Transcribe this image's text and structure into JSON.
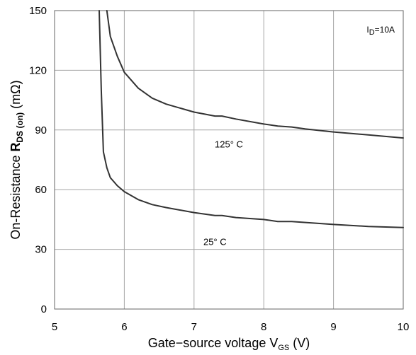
{
  "chart_data": {
    "type": "line",
    "title": "",
    "xlabel": "Gate−source voltage V",
    "xlabel_subscript": "GS",
    "xlabel_suffix": " (V)",
    "ylabel": "On-Resistance ",
    "ylabel_bold": "R",
    "ylabel_subscript": "DS (on)",
    "ylabel_suffix": " (mΩ)",
    "xlim": [
      5,
      10
    ],
    "ylim": [
      0,
      150
    ],
    "x_ticks": [
      "5",
      "6",
      "7",
      "8",
      "9",
      "10"
    ],
    "y_ticks": [
      "0",
      "30",
      "60",
      "90",
      "120",
      "150"
    ],
    "grid": true,
    "condition": {
      "prefix": "I",
      "subscript": "D",
      "suffix": "=10A"
    },
    "series": [
      {
        "name": "125° C",
        "label": "125°  C",
        "label_at": [
          7.5,
          83
        ],
        "points": [
          [
            5.75,
            150
          ],
          [
            5.8,
            137
          ],
          [
            5.9,
            127
          ],
          [
            6.0,
            119
          ],
          [
            6.2,
            111
          ],
          [
            6.4,
            106
          ],
          [
            6.6,
            103
          ],
          [
            7.0,
            99
          ],
          [
            7.3,
            97
          ],
          [
            7.4,
            97
          ],
          [
            7.6,
            95.5
          ],
          [
            8.0,
            93
          ],
          [
            8.2,
            92
          ],
          [
            8.4,
            91.5
          ],
          [
            8.6,
            90.5
          ],
          [
            9.0,
            89
          ],
          [
            9.5,
            87.5
          ],
          [
            10.0,
            86
          ]
        ]
      },
      {
        "name": "25° C",
        "label": "25°  C",
        "label_at": [
          7.3,
          34
        ],
        "points": [
          [
            5.64,
            150
          ],
          [
            5.67,
            110
          ],
          [
            5.7,
            79
          ],
          [
            5.75,
            71
          ],
          [
            5.8,
            66
          ],
          [
            5.9,
            62
          ],
          [
            6.0,
            59
          ],
          [
            6.2,
            55
          ],
          [
            6.4,
            52.5
          ],
          [
            6.6,
            51
          ],
          [
            7.0,
            48.5
          ],
          [
            7.3,
            47
          ],
          [
            7.4,
            47
          ],
          [
            7.6,
            46
          ],
          [
            8.0,
            45
          ],
          [
            8.2,
            44
          ],
          [
            8.4,
            44
          ],
          [
            8.6,
            43.5
          ],
          [
            9.0,
            42.5
          ],
          [
            9.5,
            41.5
          ],
          [
            10.0,
            41
          ]
        ]
      }
    ]
  }
}
